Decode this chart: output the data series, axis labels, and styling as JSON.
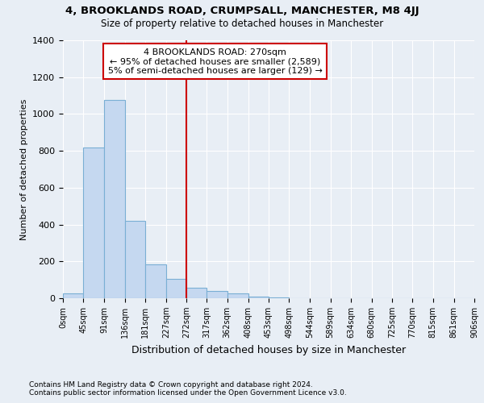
{
  "title_line1": "4, BROOKLANDS ROAD, CRUMPSALL, MANCHESTER, M8 4JJ",
  "title_line2": "Size of property relative to detached houses in Manchester",
  "xlabel": "Distribution of detached houses by size in Manchester",
  "ylabel": "Number of detached properties",
  "footer_line1": "Contains HM Land Registry data © Crown copyright and database right 2024.",
  "footer_line2": "Contains public sector information licensed under the Open Government Licence v3.0.",
  "bin_edges": [
    0,
    45,
    91,
    136,
    181,
    227,
    272,
    317,
    362,
    408,
    453,
    498,
    544,
    589,
    634,
    680,
    725,
    770,
    815,
    861,
    906
  ],
  "bar_heights": [
    25,
    820,
    1075,
    420,
    185,
    105,
    55,
    40,
    25,
    10,
    3,
    0,
    0,
    0,
    0,
    0,
    0,
    0,
    0,
    0
  ],
  "bar_color": "#c5d8f0",
  "bar_edge_color": "#7aafd4",
  "bg_color": "#e8eef5",
  "grid_color": "#ffffff",
  "vline_x": 272,
  "vline_color": "#cc0000",
  "annotation_text": "4 BROOKLANDS ROAD: 270sqm\n← 95% of detached houses are smaller (2,589)\n5% of semi-detached houses are larger (129) →",
  "annotation_box_color": "#ffffff",
  "annotation_box_edge": "#cc0000",
  "ylim": [
    0,
    1400
  ],
  "yticks": [
    0,
    200,
    400,
    600,
    800,
    1000,
    1200,
    1400
  ],
  "tick_labels": [
    "0sqm",
    "45sqm",
    "91sqm",
    "136sqm",
    "181sqm",
    "227sqm",
    "272sqm",
    "317sqm",
    "362sqm",
    "408sqm",
    "453sqm",
    "498sqm",
    "544sqm",
    "589sqm",
    "634sqm",
    "680sqm",
    "725sqm",
    "770sqm",
    "815sqm",
    "861sqm",
    "906sqm"
  ]
}
